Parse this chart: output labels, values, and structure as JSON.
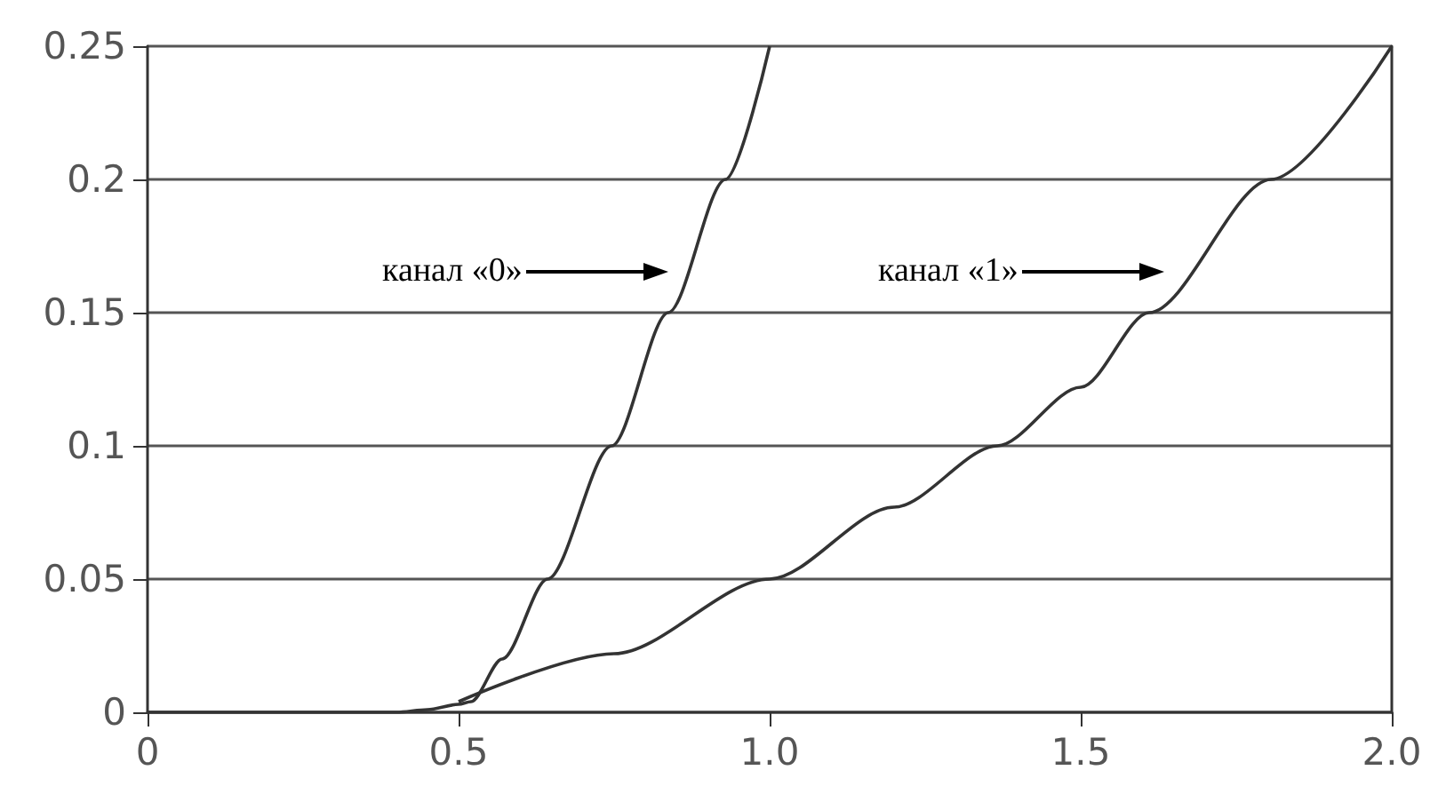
{
  "chart_data": {
    "type": "line",
    "series": [
      {
        "color": "#333333",
        "x": [
          0,
          0.2,
          0.4,
          0.45,
          0.5,
          0.52,
          0.57,
          0.643,
          0.746,
          0.837,
          0.929,
          1.0
        ],
        "values": [
          0,
          0,
          0,
          0.001,
          0.003,
          0.004,
          0.02,
          0.05,
          0.1,
          0.15,
          0.2,
          0.25
        ]
      },
      {
        "color": "#333333",
        "x": [
          0.5,
          0.75,
          1.0,
          1.2,
          1.366,
          1.5,
          1.61,
          1.806,
          2.0
        ],
        "values": [
          0.004,
          0.022,
          0.05,
          0.077,
          0.1,
          0.122,
          0.15,
          0.2,
          0.25
        ]
      }
    ],
    "xlim": [
      0,
      2.0
    ],
    "xticks": [
      0,
      0.5,
      {
        "value": 1,
        "label": "1.0"
      },
      1.5,
      {
        "value": 2,
        "label": "2.0"
      }
    ],
    "ylim": [
      0,
      0.25
    ],
    "yticks": [
      0,
      0.05,
      0.1,
      0.15,
      0.2,
      0.25
    ],
    "grid": "y",
    "marker": "none",
    "line_style": "solid",
    "annotations": [
      "канал «0»",
      "канал «1»"
    ]
  }
}
